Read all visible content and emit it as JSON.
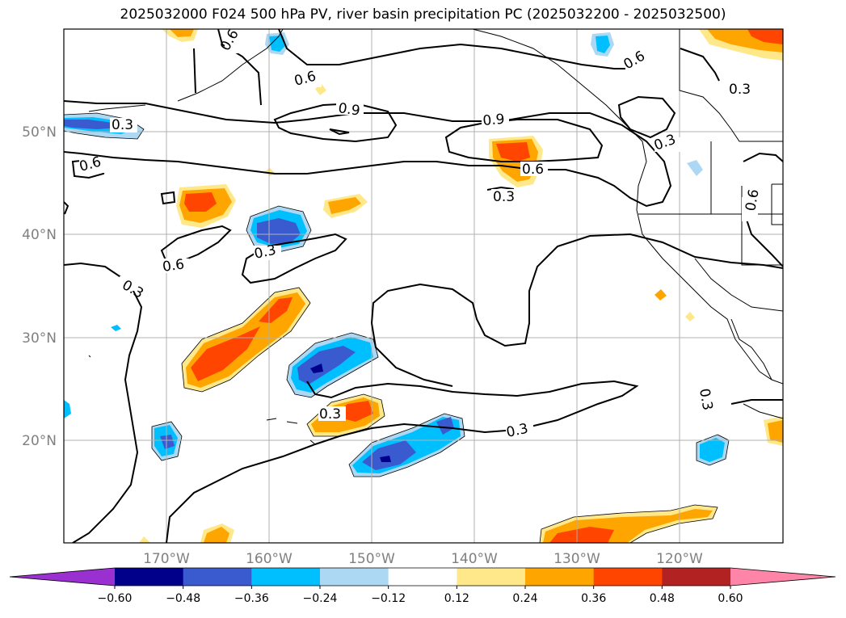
{
  "title": "2025032000 F024 500 hPa PV, river basin precipitation PC (2025032200 - 2025032500)",
  "lon_ticks": [
    "170°W",
    "160°W",
    "150°W",
    "140°W",
    "130°W",
    "120°W"
  ],
  "lat_ticks": [
    "50°N",
    "40°N",
    "30°N",
    "20°N"
  ],
  "contour_labels": [
    "0.3",
    "0.6",
    "0.9"
  ],
  "colorbar": {
    "tick_labels": [
      "−0.60",
      "−0.48",
      "−0.36",
      "−0.24",
      "−0.12",
      "0.12",
      "0.24",
      "0.36",
      "0.48",
      "0.60"
    ],
    "colors": [
      "#9b30d0",
      "#00008b",
      "#3a5bd0",
      "#00bfff",
      "#add8f4",
      "#ffffff",
      "#ffe88a",
      "#ffa500",
      "#ff4500",
      "#b22222",
      "#ff85a8"
    ]
  }
}
